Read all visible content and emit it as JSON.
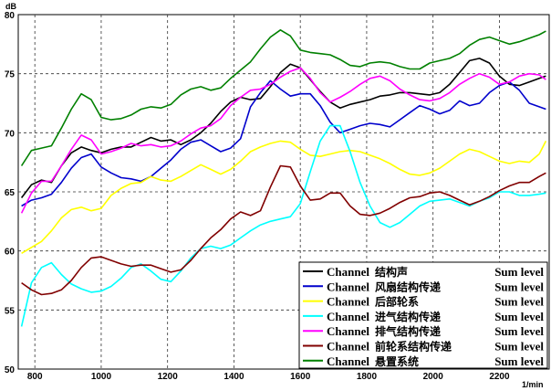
{
  "chart_data": {
    "type": "line",
    "title": "",
    "ylabel": "dB",
    "xlabel": "1/min",
    "xlim": [
      750,
      2350
    ],
    "ylim": [
      50,
      80
    ],
    "xticks": [
      "800",
      "1000",
      "1200",
      "1400",
      "1600",
      "1800",
      "2000",
      "2200"
    ],
    "yticks": [
      "50",
      "55",
      "60",
      "65",
      "70",
      "75",
      "80"
    ],
    "grid": true,
    "legend_position": "bottom-right",
    "x": [
      760,
      790,
      820,
      850,
      880,
      910,
      940,
      970,
      1000,
      1030,
      1060,
      1090,
      1120,
      1150,
      1180,
      1210,
      1240,
      1270,
      1300,
      1330,
      1360,
      1390,
      1420,
      1450,
      1480,
      1510,
      1540,
      1570,
      1600,
      1630,
      1660,
      1690,
      1720,
      1750,
      1780,
      1810,
      1840,
      1870,
      1900,
      1930,
      1960,
      1990,
      2020,
      2050,
      2080,
      2110,
      2140,
      2170,
      2200,
      2230,
      2260,
      2290,
      2320,
      2340
    ],
    "series": [
      {
        "name": "Channel  结构声",
        "label_suffix": "Sum level",
        "color": "#000000",
        "values": [
          64.5,
          65.6,
          66.0,
          65.8,
          67.2,
          68.3,
          68.8,
          68.5,
          68.3,
          68.6,
          68.8,
          68.8,
          69.2,
          69.6,
          69.3,
          69.4,
          69.0,
          69.4,
          70.0,
          70.8,
          71.8,
          72.6,
          73.0,
          72.8,
          72.9,
          73.9,
          75.1,
          75.8,
          75.5,
          74.5,
          73.5,
          72.6,
          72.1,
          72.4,
          72.6,
          72.8,
          73.1,
          73.2,
          73.4,
          73.4,
          73.3,
          73.2,
          73.4,
          74.1,
          75.1,
          76.1,
          76.3,
          75.9,
          74.8,
          74.1,
          74.0,
          74.3,
          74.6,
          74.8
        ]
      },
      {
        "name": "Channel  风扇结构传递",
        "label_suffix": "Sum level",
        "color": "#0000cc",
        "values": [
          63.8,
          64.3,
          64.5,
          64.8,
          65.8,
          67.0,
          67.9,
          68.2,
          67.1,
          66.6,
          66.2,
          66.1,
          65.9,
          66.3,
          67.0,
          67.7,
          68.6,
          69.2,
          69.4,
          68.9,
          68.4,
          68.7,
          69.5,
          72.2,
          73.4,
          74.4,
          73.7,
          73.1,
          73.3,
          73.3,
          72.3,
          70.9,
          70.0,
          70.3,
          70.6,
          70.8,
          70.7,
          70.5,
          71.1,
          71.7,
          72.3,
          72.0,
          71.6,
          71.9,
          72.7,
          72.3,
          72.5,
          73.4,
          74.0,
          74.3,
          73.6,
          72.5,
          72.2,
          72.0
        ]
      },
      {
        "name": "Channel  后部轮系",
        "label_suffix": "Sum level",
        "color": "#ffff00",
        "values": [
          59.8,
          60.3,
          60.8,
          61.7,
          62.8,
          63.5,
          63.7,
          63.4,
          63.6,
          64.7,
          65.3,
          65.7,
          65.8,
          66.3,
          66.0,
          65.9,
          66.3,
          66.8,
          67.3,
          66.9,
          66.5,
          66.9,
          67.6,
          68.4,
          68.8,
          69.1,
          69.3,
          69.2,
          68.6,
          68.1,
          68.0,
          68.2,
          68.4,
          68.5,
          68.4,
          68.1,
          67.8,
          67.4,
          66.9,
          66.5,
          66.4,
          66.6,
          67.0,
          67.6,
          68.2,
          68.6,
          68.4,
          68.0,
          67.6,
          67.4,
          67.6,
          67.5,
          68.2,
          69.3
        ]
      },
      {
        "name": "Channel  进气结构传递",
        "label_suffix": "Sum level",
        "color": "#00ffff",
        "values": [
          53.6,
          57.3,
          58.6,
          59.0,
          58.0,
          57.2,
          56.8,
          56.5,
          56.6,
          57.0,
          57.7,
          58.6,
          58.9,
          58.3,
          57.6,
          57.4,
          58.3,
          59.4,
          60.2,
          60.4,
          60.2,
          60.5,
          61.1,
          61.7,
          62.2,
          62.5,
          62.7,
          62.9,
          64.0,
          66.7,
          69.3,
          70.6,
          70.6,
          68.4,
          65.8,
          63.8,
          62.4,
          62.0,
          62.4,
          63.1,
          63.8,
          64.2,
          64.3,
          64.4,
          64.1,
          63.8,
          64.2,
          64.5,
          65.0,
          65.0,
          64.7,
          64.7,
          64.8,
          64.9
        ]
      },
      {
        "name": "Channel  排气结构传递",
        "label_suffix": "Sum level",
        "color": "#ff00ff",
        "values": [
          63.2,
          64.9,
          65.9,
          65.9,
          67.2,
          68.6,
          69.8,
          69.4,
          68.2,
          68.4,
          68.7,
          69.1,
          68.9,
          69.0,
          68.8,
          68.9,
          69.3,
          69.9,
          70.4,
          70.6,
          71.2,
          72.3,
          73.0,
          73.6,
          73.7,
          74.1,
          74.7,
          75.2,
          75.5,
          74.6,
          73.4,
          72.6,
          73.0,
          73.5,
          74.1,
          74.6,
          74.8,
          74.4,
          73.7,
          73.2,
          72.8,
          72.7,
          72.9,
          73.4,
          74.1,
          74.6,
          75.0,
          74.7,
          74.1,
          74.3,
          74.8,
          75.0,
          74.9,
          74.5
        ]
      },
      {
        "name": "Channel  前轮系结构传递",
        "label_suffix": "Sum level",
        "color": "#800000",
        "values": [
          57.3,
          56.7,
          56.3,
          56.4,
          56.7,
          57.5,
          58.6,
          59.4,
          59.5,
          59.2,
          58.9,
          58.7,
          58.8,
          58.8,
          58.5,
          58.2,
          58.4,
          59.2,
          60.2,
          61.1,
          61.8,
          62.7,
          63.3,
          63.0,
          63.4,
          65.4,
          67.2,
          67.1,
          65.5,
          64.3,
          64.4,
          64.9,
          64.9,
          63.8,
          63.1,
          63.0,
          63.2,
          63.6,
          64.1,
          64.5,
          64.6,
          64.9,
          65.0,
          64.7,
          64.3,
          63.9,
          64.2,
          64.6,
          65.1,
          65.5,
          65.8,
          65.8,
          66.3,
          66.6
        ]
      },
      {
        "name": "Channel  悬置系统",
        "label_suffix": "Sum level",
        "color": "#008000",
        "values": [
          67.2,
          68.5,
          68.7,
          68.9,
          70.4,
          72.0,
          73.3,
          72.8,
          71.3,
          71.1,
          71.2,
          71.5,
          72.0,
          72.2,
          72.1,
          72.4,
          73.2,
          73.7,
          73.9,
          73.6,
          73.8,
          74.6,
          75.3,
          76.0,
          77.1,
          78.1,
          78.7,
          78.2,
          77.0,
          76.8,
          76.7,
          76.6,
          76.2,
          75.7,
          75.6,
          75.9,
          76.0,
          75.9,
          75.6,
          75.4,
          75.4,
          75.9,
          76.1,
          76.3,
          76.7,
          77.4,
          77.9,
          78.1,
          77.8,
          77.5,
          77.7,
          78.0,
          78.3,
          78.6
        ]
      }
    ]
  }
}
